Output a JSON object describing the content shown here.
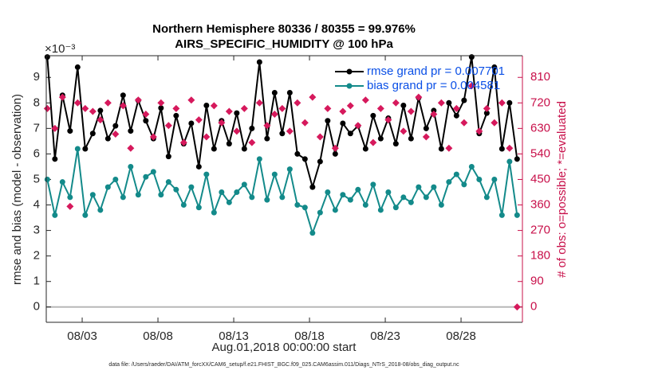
{
  "chart_data": {
    "type": "line",
    "title": "Northern Hemisphere 80336 / 80355 = 99.976%",
    "subtitle": "AIRS_SPECIFIC_HUMIDITY @ 100 hPa",
    "ylabel": "rmse and bias (model - observation)",
    "y2label": "# of obs: o=possible; *=evaluated",
    "xlabel": "Aug.01,2018 00:00:00 start",
    "exponent": "×10⁻³",
    "footnote": "data file: /Users/raeder/DAI/ATM_forcXX/CAM6_setup/f.e21.FHIST_BGC.f09_025.CAM6assim.011/Diags_NTrS_2018-08/obs_diag_output.nc",
    "legend": "upper right",
    "x": [
      -0.3,
      0.2,
      0.7,
      1.2,
      1.7,
      2.2,
      2.7,
      3.2,
      3.7,
      4.2,
      4.7,
      5.2,
      5.7,
      6.2,
      6.7,
      7.2,
      7.7,
      8.2,
      8.7,
      9.2,
      9.7,
      10.2,
      10.7,
      11.2,
      11.7,
      12.2,
      12.7,
      13.2,
      13.7,
      14.2,
      14.7,
      15.2,
      15.7,
      16.2,
      16.7,
      17.2,
      17.7,
      18.2,
      18.7,
      19.2,
      19.7,
      20.2,
      20.7,
      21.2,
      21.7,
      22.2,
      22.7,
      23.2,
      23.7,
      24.2,
      24.7,
      25.2,
      25.7,
      26.2,
      26.7,
      27.2,
      27.7,
      28.2,
      28.7,
      29.2,
      29.7,
      30.2,
      30.7
    ],
    "xlim": [
      -0.37,
      31.05
    ],
    "xticks": [
      {
        "value": 2,
        "label": "08/03"
      },
      {
        "value": 7,
        "label": "08/08"
      },
      {
        "value": 12,
        "label": "08/13"
      },
      {
        "value": 17,
        "label": "08/18"
      },
      {
        "value": 22,
        "label": "08/23"
      },
      {
        "value": 27,
        "label": "08/28"
      }
    ],
    "ylim": [
      -0.6,
      9.85
    ],
    "yticks": [
      0,
      1,
      2,
      3,
      4,
      5,
      6,
      7,
      8,
      9
    ],
    "y2lim": [
      -54,
      886.5
    ],
    "y2ticks": [
      0,
      90,
      180,
      270,
      360,
      450,
      540,
      630,
      720,
      810
    ],
    "series": [
      {
        "name": "rmse grand pr = 0.007701",
        "color": "#000000",
        "values": [
          9.8,
          5.8,
          8.3,
          6.9,
          9.4,
          6.2,
          6.8,
          7.7,
          6.6,
          7.1,
          8.3,
          6.9,
          8.1,
          7.3,
          6.6,
          7.8,
          5.9,
          7.5,
          6.4,
          7.2,
          5.5,
          7.9,
          6.2,
          7.3,
          6.4,
          7.6,
          6.2,
          7.0,
          9.6,
          6.6,
          8.4,
          6.8,
          8.4,
          6.0,
          5.8,
          4.7,
          5.7,
          7.3,
          6.0,
          7.2,
          6.8,
          7.1,
          6.2,
          7.5,
          6.6,
          7.4,
          6.4,
          7.9,
          6.6,
          8.2,
          7.0,
          7.7,
          6.2,
          8.0,
          7.5,
          8.1,
          9.8,
          6.8,
          7.6,
          9.4,
          6.2,
          8.0,
          5.8
        ]
      },
      {
        "name": "bias grand pr = 0.004581",
        "color": "#138a8a",
        "values": [
          5.0,
          3.6,
          4.9,
          4.3,
          6.2,
          3.6,
          4.4,
          3.8,
          4.7,
          5.0,
          4.3,
          5.5,
          4.4,
          5.1,
          5.3,
          4.4,
          4.9,
          4.6,
          4.0,
          4.7,
          3.9,
          5.2,
          3.7,
          4.5,
          4.1,
          4.5,
          4.8,
          4.3,
          5.8,
          4.2,
          5.2,
          4.3,
          5.4,
          4.0,
          3.9,
          2.9,
          3.7,
          4.5,
          3.8,
          4.4,
          4.2,
          4.6,
          4.0,
          4.8,
          3.8,
          4.5,
          3.9,
          4.3,
          4.1,
          4.7,
          4.3,
          4.7,
          4.0,
          4.9,
          5.2,
          4.8,
          5.5,
          5.0,
          4.3,
          5.0,
          3.6,
          5.7,
          3.6
        ]
      },
      {
        "color": "#d6195c",
        "axis": "y2",
        "values": [
          700,
          630,
          740,
          355,
          720,
          700,
          690,
          660,
          720,
          610,
          710,
          560,
          730,
          680,
          600,
          720,
          640,
          700,
          580,
          730,
          660,
          600,
          710,
          650,
          690,
          620,
          700,
          580,
          720,
          640,
          680,
          700,
          620,
          720,
          650,
          740,
          600,
          700,
          560,
          690,
          710,
          640,
          730,
          580,
          700,
          660,
          720,
          620,
          690,
          740,
          600,
          680,
          720,
          560,
          700,
          650,
          780,
          620,
          700,
          650,
          720,
          560,
          0
        ]
      }
    ]
  }
}
